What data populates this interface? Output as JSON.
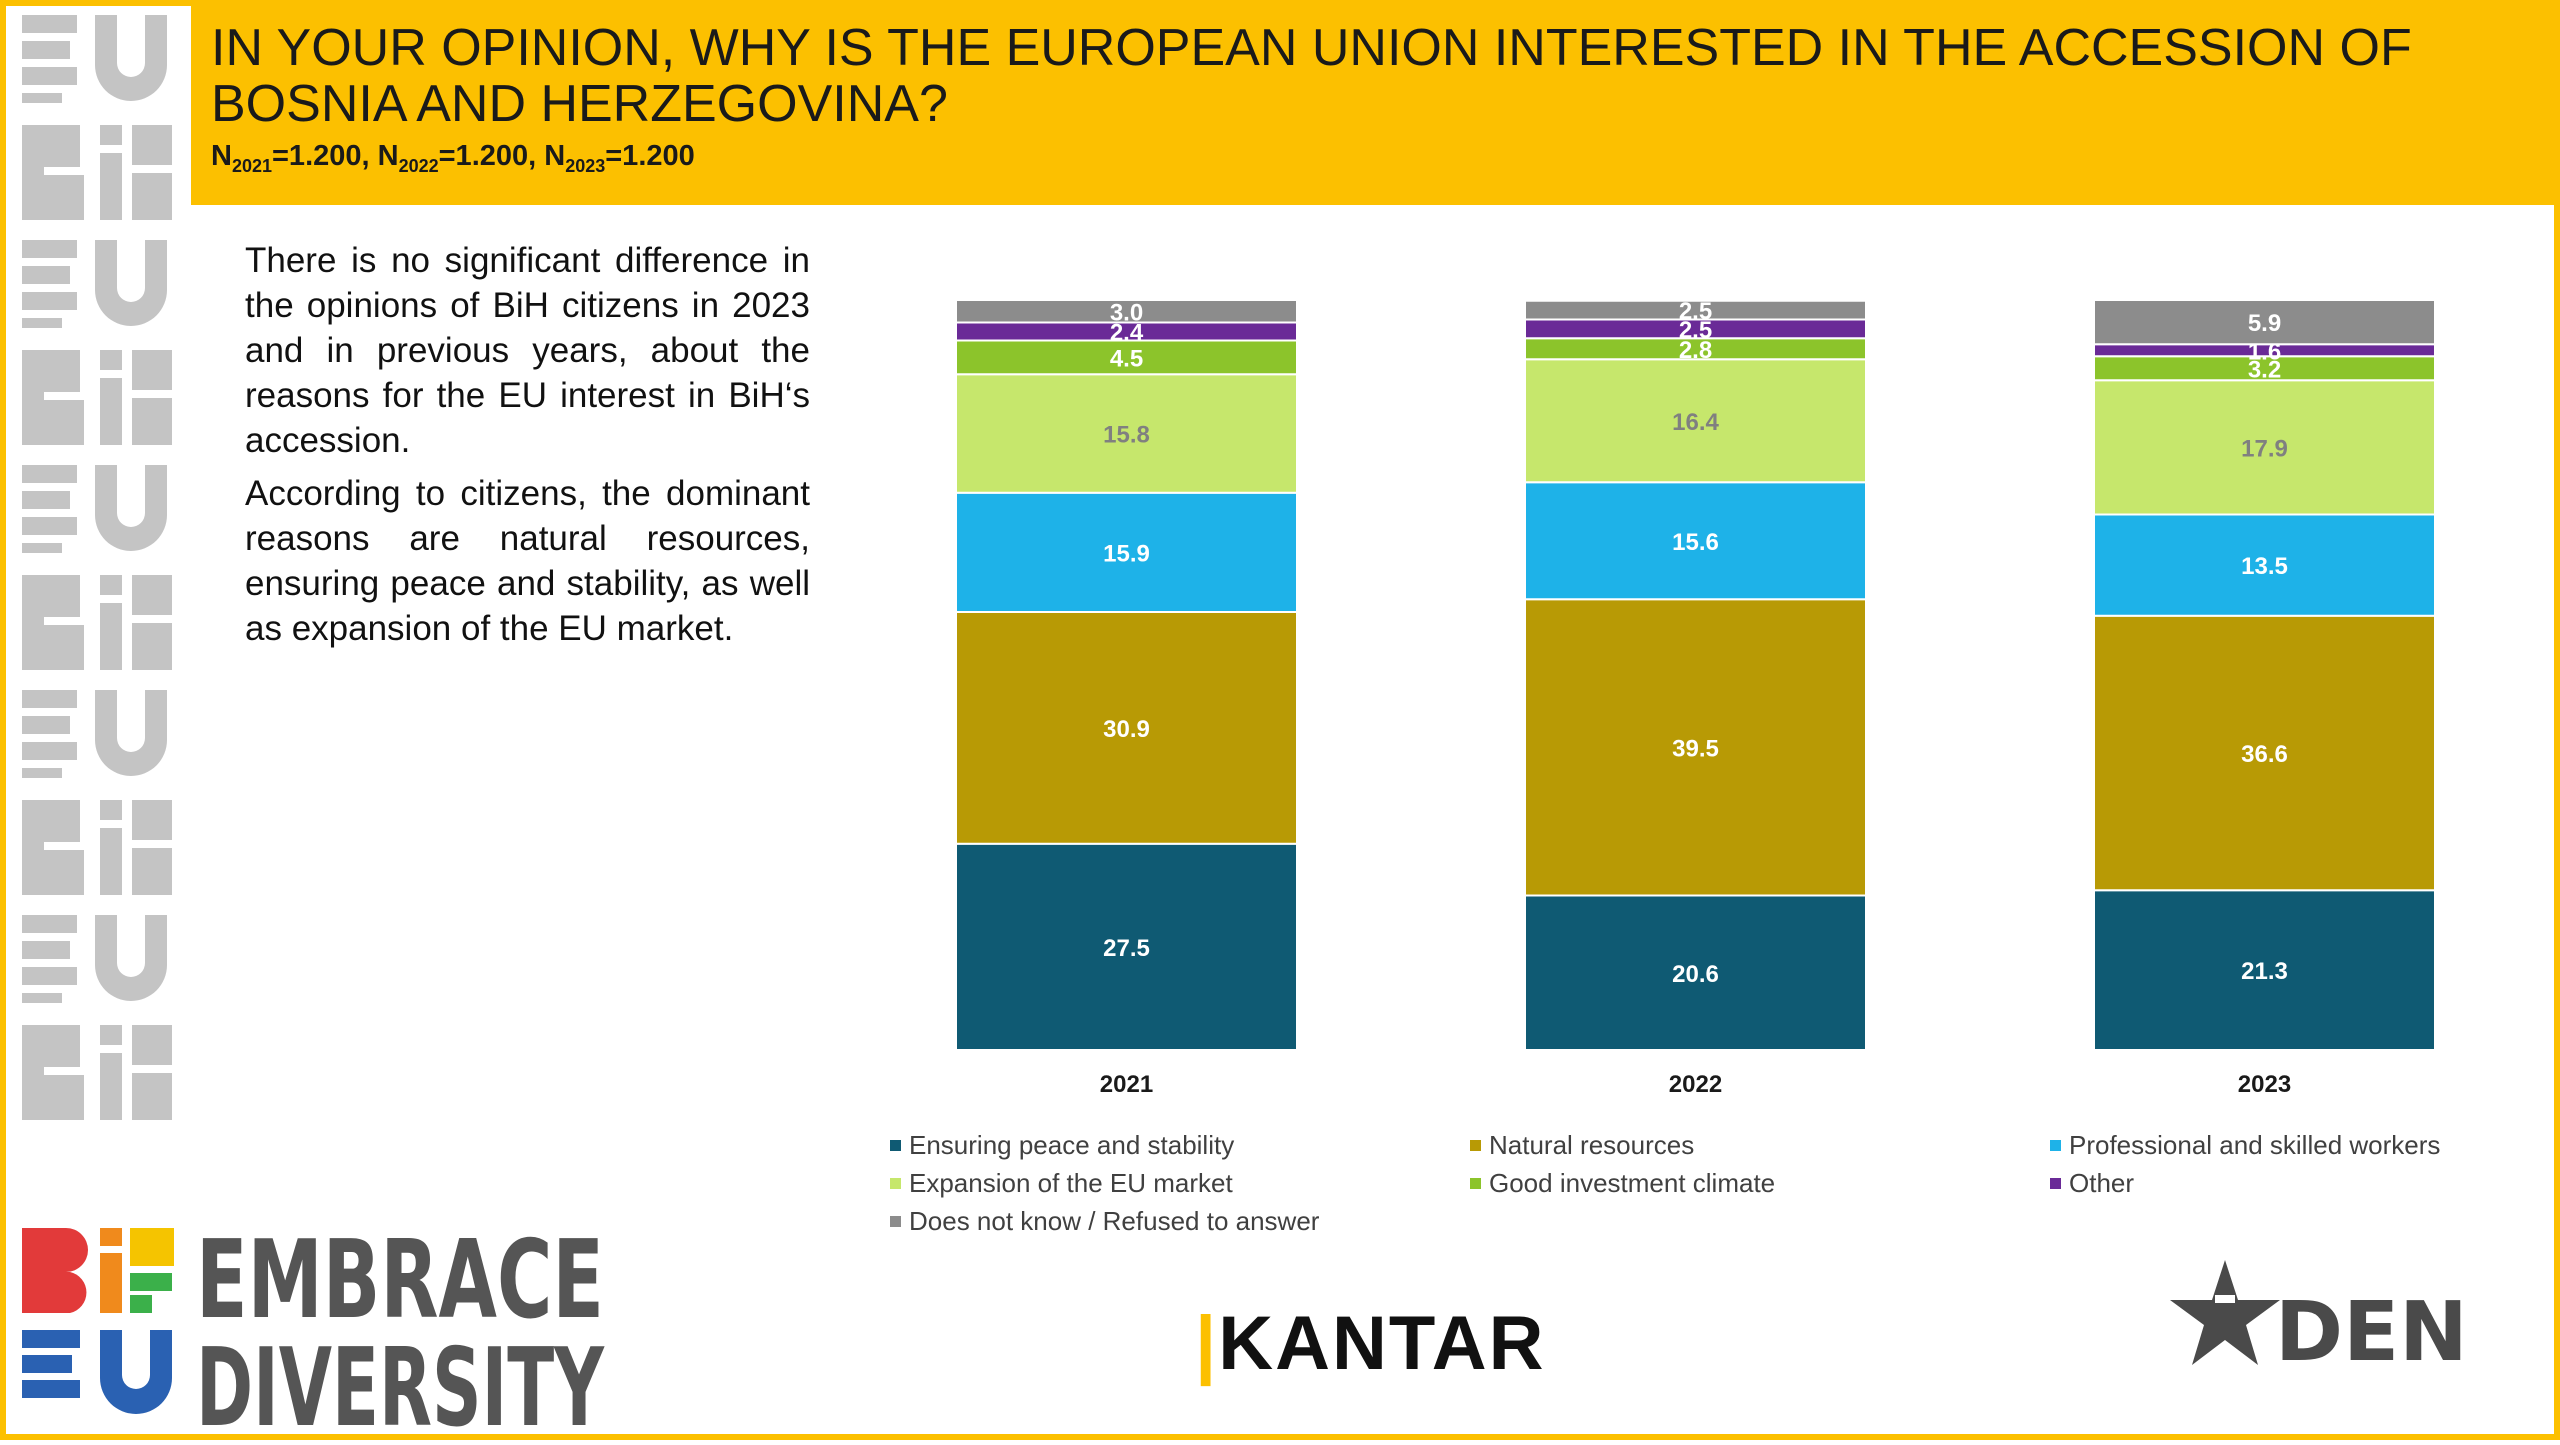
{
  "header": {
    "title": "IN YOUR OPINION, WHY IS THE EUROPEAN UNION INTERESTED IN THE ACCESSION OF BOSNIA AND HERZEGOVINA?",
    "sample": [
      {
        "label": "N",
        "sub": "2021",
        "value": "=1.200, "
      },
      {
        "label": "N",
        "sub": "2022",
        "value": "=1.200, "
      },
      {
        "label": "N",
        "sub": "2023",
        "value": "=1.200"
      }
    ]
  },
  "description": {
    "p1": "There is no significant difference in the opinions of BiH citizens in 2023 and in previous years, about the reasons for the EU interest in BiH‘s accession.",
    "p2": "According to citizens, the dominant reasons are natural resources, ensuring peace and stability, as well as expansion of the EU market."
  },
  "branding": {
    "embrace": "EMBRACE",
    "diversity": "DIVERSITY",
    "bih_logo": "BiH EU",
    "kantar": "KANTAR",
    "den": "DEN"
  },
  "colors": {
    "accent": "#fcc000",
    "peace": "#0f5a73",
    "natural": "#b89a05",
    "workers": "#1eb2e8",
    "market": "#c6e76c",
    "investment": "#8cc42b",
    "other": "#6a2a97",
    "dontknow": "#8c8c8c"
  },
  "chart_data": {
    "type": "bar",
    "stacked": true,
    "categories": [
      "2021",
      "2022",
      "2023"
    ],
    "ylim": [
      0,
      100
    ],
    "legend_position": "bottom",
    "series": [
      {
        "name": "Ensuring peace and stability",
        "color": "#0f5a73",
        "label_color": "#ffffff",
        "values": [
          27.5,
          20.6,
          21.3
        ]
      },
      {
        "name": "Natural resources",
        "color": "#b89a05",
        "label_color": "#ffffff",
        "values": [
          30.9,
          39.5,
          36.6
        ]
      },
      {
        "name": "Professional and skilled workers",
        "color": "#1eb2e8",
        "label_color": "#ffffff",
        "values": [
          15.9,
          15.6,
          13.5
        ]
      },
      {
        "name": "Expansion of the EU market",
        "color": "#c6e76c",
        "label_color": "#808080",
        "values": [
          15.8,
          16.4,
          17.9
        ]
      },
      {
        "name": "Good investment climate",
        "color": "#8cc42b",
        "label_color": "#ffffff",
        "values": [
          4.5,
          2.8,
          3.2
        ]
      },
      {
        "name": "Other",
        "color": "#6a2a97",
        "label_color": "#ffffff",
        "values": [
          2.4,
          2.5,
          1.6
        ]
      },
      {
        "name": "Does not know / Refused to answer",
        "color": "#8c8c8c",
        "label_color": "#ffffff",
        "values": [
          3.0,
          2.5,
          5.9
        ]
      }
    ],
    "legend_order": [
      "Ensuring peace and stability",
      "Natural resources",
      "Professional and skilled workers",
      "Expansion of the EU market",
      "Good investment climate",
      "Other",
      "Does not know / Refused to answer"
    ]
  }
}
